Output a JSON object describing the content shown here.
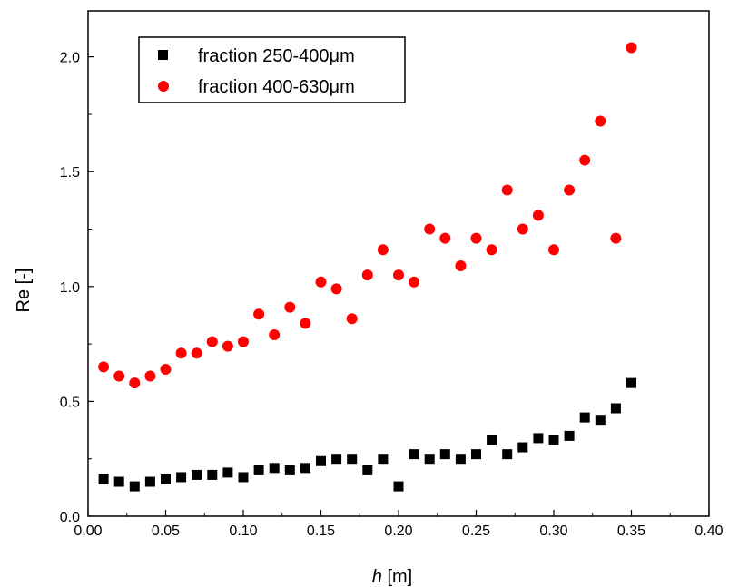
{
  "chart_data": {
    "type": "scatter",
    "xlabel": "h",
    "xlabel_unit": "[m]",
    "ylabel": "Re [-]",
    "xlim": [
      0.0,
      0.4
    ],
    "ylim": [
      0.0,
      2.2
    ],
    "x_ticks": [
      0.0,
      0.05,
      0.1,
      0.15,
      0.2,
      0.25,
      0.3,
      0.35,
      0.4
    ],
    "x_tick_labels": [
      "0.00",
      "0.05",
      "0.10",
      "0.15",
      "0.20",
      "0.25",
      "0.30",
      "0.35",
      "0.40"
    ],
    "y_ticks": [
      0.0,
      0.5,
      1.0,
      1.5,
      2.0
    ],
    "y_tick_labels": [
      "0.0",
      "0.5",
      "1.0",
      "1.5",
      "2.0"
    ],
    "grid": false,
    "legend_position": "top-left",
    "series": [
      {
        "name": "fraction 250-400μm",
        "marker": "square",
        "color": "#000000",
        "x": [
          0.01,
          0.02,
          0.03,
          0.04,
          0.05,
          0.06,
          0.07,
          0.08,
          0.09,
          0.1,
          0.11,
          0.12,
          0.13,
          0.14,
          0.15,
          0.16,
          0.17,
          0.18,
          0.19,
          0.2,
          0.21,
          0.22,
          0.23,
          0.24,
          0.25,
          0.26,
          0.27,
          0.28,
          0.29,
          0.3,
          0.31,
          0.32,
          0.33,
          0.34,
          0.35
        ],
        "y": [
          0.16,
          0.15,
          0.13,
          0.15,
          0.16,
          0.17,
          0.18,
          0.18,
          0.19,
          0.17,
          0.2,
          0.21,
          0.2,
          0.21,
          0.24,
          0.25,
          0.25,
          0.2,
          0.25,
          0.13,
          0.27,
          0.25,
          0.27,
          0.25,
          0.27,
          0.33,
          0.27,
          0.3,
          0.34,
          0.33,
          0.35,
          0.43,
          0.42,
          0.47,
          0.58
        ]
      },
      {
        "name": "fraction 400-630μm",
        "marker": "circle",
        "color": "#ff0000",
        "x": [
          0.01,
          0.02,
          0.03,
          0.04,
          0.05,
          0.06,
          0.07,
          0.08,
          0.09,
          0.1,
          0.11,
          0.12,
          0.13,
          0.14,
          0.15,
          0.16,
          0.17,
          0.18,
          0.19,
          0.2,
          0.21,
          0.22,
          0.23,
          0.24,
          0.25,
          0.26,
          0.27,
          0.28,
          0.29,
          0.3,
          0.31,
          0.32,
          0.33,
          0.34,
          0.35
        ],
        "y": [
          0.65,
          0.61,
          0.58,
          0.61,
          0.64,
          0.71,
          0.71,
          0.76,
          0.74,
          0.76,
          0.88,
          0.79,
          0.91,
          0.84,
          1.02,
          0.99,
          0.86,
          1.05,
          1.16,
          1.05,
          1.02,
          1.25,
          1.21,
          1.09,
          1.21,
          1.16,
          1.42,
          1.25,
          1.31,
          1.16,
          1.42,
          1.55,
          1.72,
          1.21,
          2.04
        ]
      }
    ]
  }
}
